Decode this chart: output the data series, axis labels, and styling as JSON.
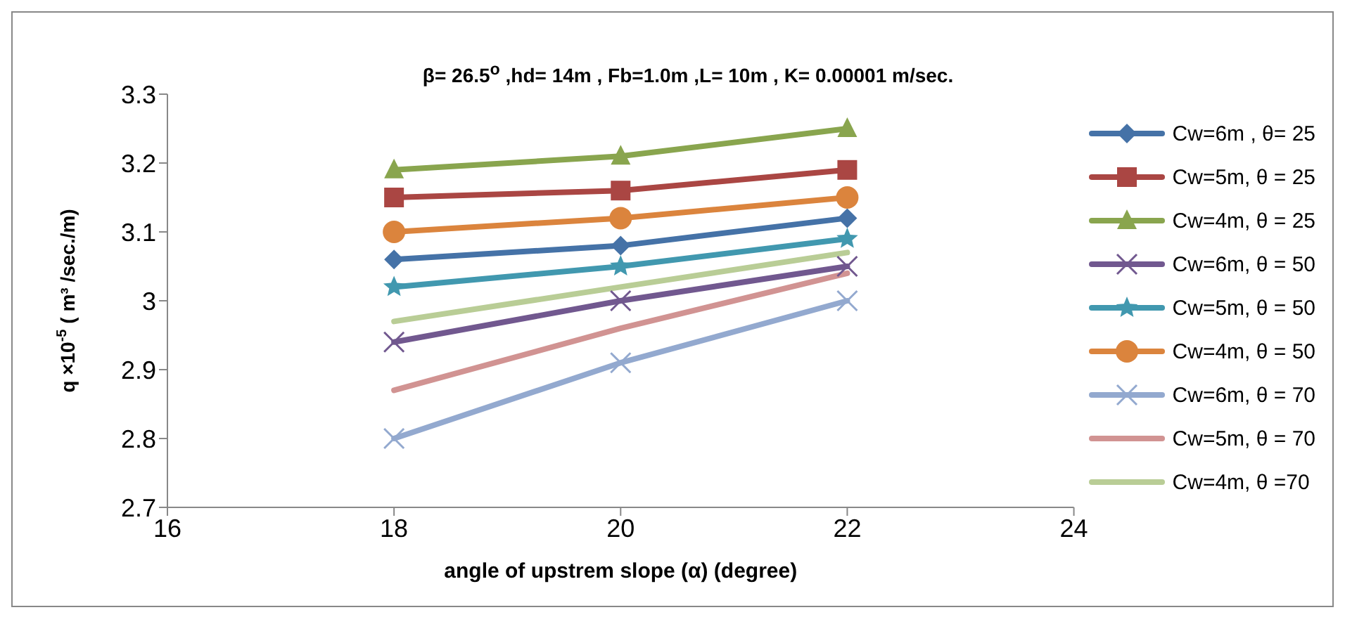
{
  "chart_data": {
    "type": "line",
    "title": "β= 26.5$^{o}$ ,hd= 14m , Fb=1.0m ,L= 10m , K= 0.00001 m/sec.",
    "xlabel": "angle of upstrem slope (α) (degree)",
    "ylabel": "q ×10$^{-5}$ ( m³ /sec./m)",
    "x": [
      18,
      20,
      22
    ],
    "xlim": [
      16,
      24
    ],
    "xticks": [
      16,
      18,
      20,
      22,
      24
    ],
    "ylim": [
      2.7,
      3.3
    ],
    "yticks": [
      2.7,
      2.8,
      2.9,
      3,
      3.1,
      3.2,
      3.3
    ],
    "grid": false,
    "legend": "right",
    "line_style": "solid",
    "series": [
      {
        "name": "Cw=6m , θ= 25",
        "color": "#4572a7",
        "marker": "diamond",
        "values": [
          3.06,
          3.08,
          3.12
        ]
      },
      {
        "name": "Cw=5m, θ = 25",
        "color": "#aa4643",
        "marker": "square",
        "values": [
          3.15,
          3.16,
          3.19
        ]
      },
      {
        "name": "Cw=4m, θ = 25",
        "color": "#89a54e",
        "marker": "triangle",
        "values": [
          3.19,
          3.21,
          3.25
        ]
      },
      {
        "name": "Cw=6m, θ = 50",
        "color": "#71588f",
        "marker": "cross",
        "values": [
          2.94,
          3.0,
          3.05
        ]
      },
      {
        "name": "Cw=5m, θ = 50",
        "color": "#4198af",
        "marker": "star",
        "values": [
          3.02,
          3.05,
          3.09
        ]
      },
      {
        "name": "Cw=4m, θ = 50",
        "color": "#db843d",
        "marker": "circle",
        "values": [
          3.1,
          3.12,
          3.15
        ]
      },
      {
        "name": "Cw=6m, θ = 70",
        "color": "#93a9cf",
        "marker": "cross",
        "values": [
          2.8,
          2.91,
          3.0
        ]
      },
      {
        "name": "Cw=5m, θ = 70",
        "color": "#d19392",
        "marker": "none",
        "values": [
          2.87,
          2.96,
          3.04
        ]
      },
      {
        "name": "Cw=4m, θ =70",
        "color": "#b9cd96",
        "marker": "none",
        "values": [
          2.97,
          3.02,
          3.07
        ]
      }
    ]
  }
}
